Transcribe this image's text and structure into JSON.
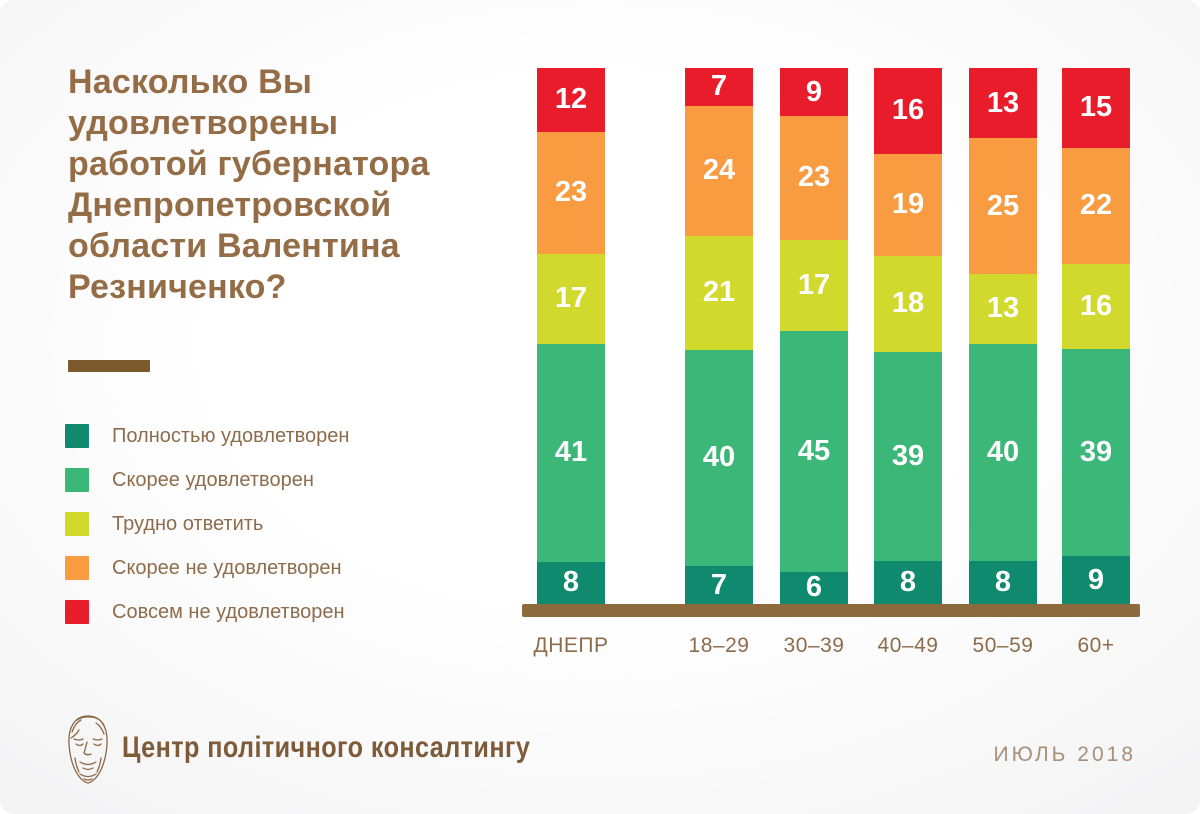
{
  "header": {
    "title": "Насколько Вы\nудовлетворены\nработой губернатора\nДнепропетровской\nобласти Валентина\nРезниченко?"
  },
  "chart_data": {
    "type": "bar",
    "stacked": true,
    "unit": "percent",
    "title": "Насколько Вы удовлетворены работой губернатора Днепропетровской области Валентина Резниченко?",
    "categories": [
      "ДНЕПР",
      "18–29",
      "30–39",
      "40–49",
      "50–59",
      "60+"
    ],
    "series": [
      {
        "name": "Полностью удовлетворен",
        "color": "#108a6e",
        "values": [
          8,
          7,
          6,
          8,
          8,
          9
        ]
      },
      {
        "name": "Скорее удовлетворен",
        "color": "#3bb878",
        "values": [
          41,
          40,
          45,
          39,
          40,
          39
        ]
      },
      {
        "name": "Трудно ответить",
        "color": "#d2d92d",
        "values": [
          17,
          21,
          17,
          18,
          13,
          16
        ]
      },
      {
        "name": "Скорее не удовлетворен",
        "color": "#f89b41",
        "values": [
          23,
          24,
          23,
          19,
          25,
          22
        ]
      },
      {
        "name": "Совсем не удовлетворен",
        "color": "#e81c2a",
        "values": [
          12,
          7,
          9,
          16,
          13,
          15
        ]
      }
    ],
    "legend_position": "left",
    "value_labels": "inside-white",
    "grid": false,
    "baseline_color": "#8d6a3d"
  },
  "footer": {
    "org_name": "Центр політичного консалтингу",
    "date": "ИЮЛЬ 2018",
    "logo": "aristotle-head-sketch"
  },
  "colors": {
    "title_text": "#946d47",
    "legend_text": "#8d6c4c",
    "axis_label_text": "#8d6c4c",
    "divider": "#7d5a2e",
    "date_text": "#a89079"
  }
}
